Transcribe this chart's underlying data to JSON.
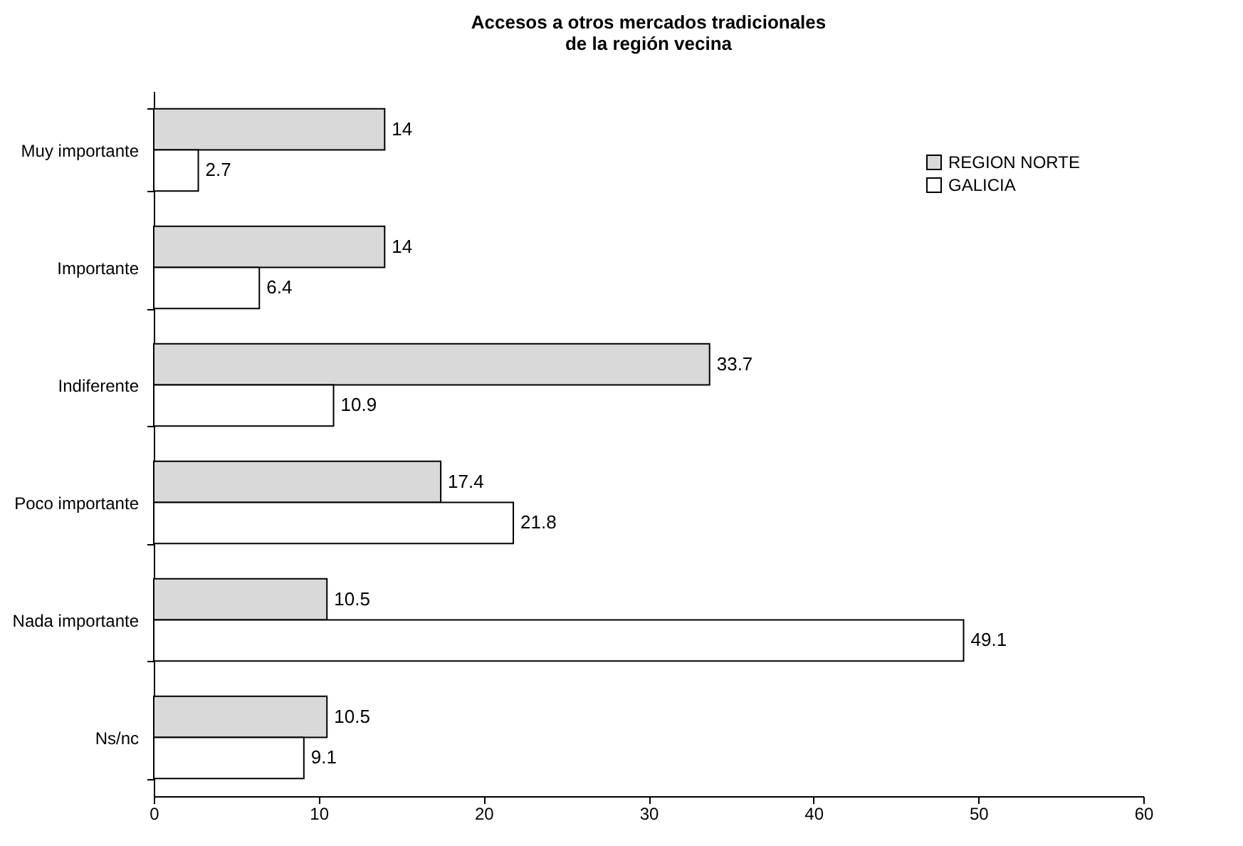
{
  "chart_data": {
    "type": "bar",
    "orientation": "horizontal",
    "title": "Accesos a otros mercados tradicionales\nde la región vecina",
    "categories": [
      "Muy importante",
      "Importante",
      "Indiferente",
      "Poco importante",
      "Nada importante",
      "Ns/nc"
    ],
    "series": [
      {
        "name": "REGION NORTE",
        "color": "#d9d9d9",
        "values": [
          14,
          14,
          33.7,
          17.4,
          10.5,
          10.5
        ]
      },
      {
        "name": "GALICIA",
        "color": "#ffffff",
        "values": [
          2.7,
          6.4,
          10.9,
          21.8,
          49.1,
          9.1
        ]
      }
    ],
    "xlim": [
      0,
      60
    ],
    "xticks": [
      0,
      10,
      20,
      30,
      40,
      50,
      60
    ],
    "data_labels": true,
    "legend": "top right",
    "grid": false
  }
}
